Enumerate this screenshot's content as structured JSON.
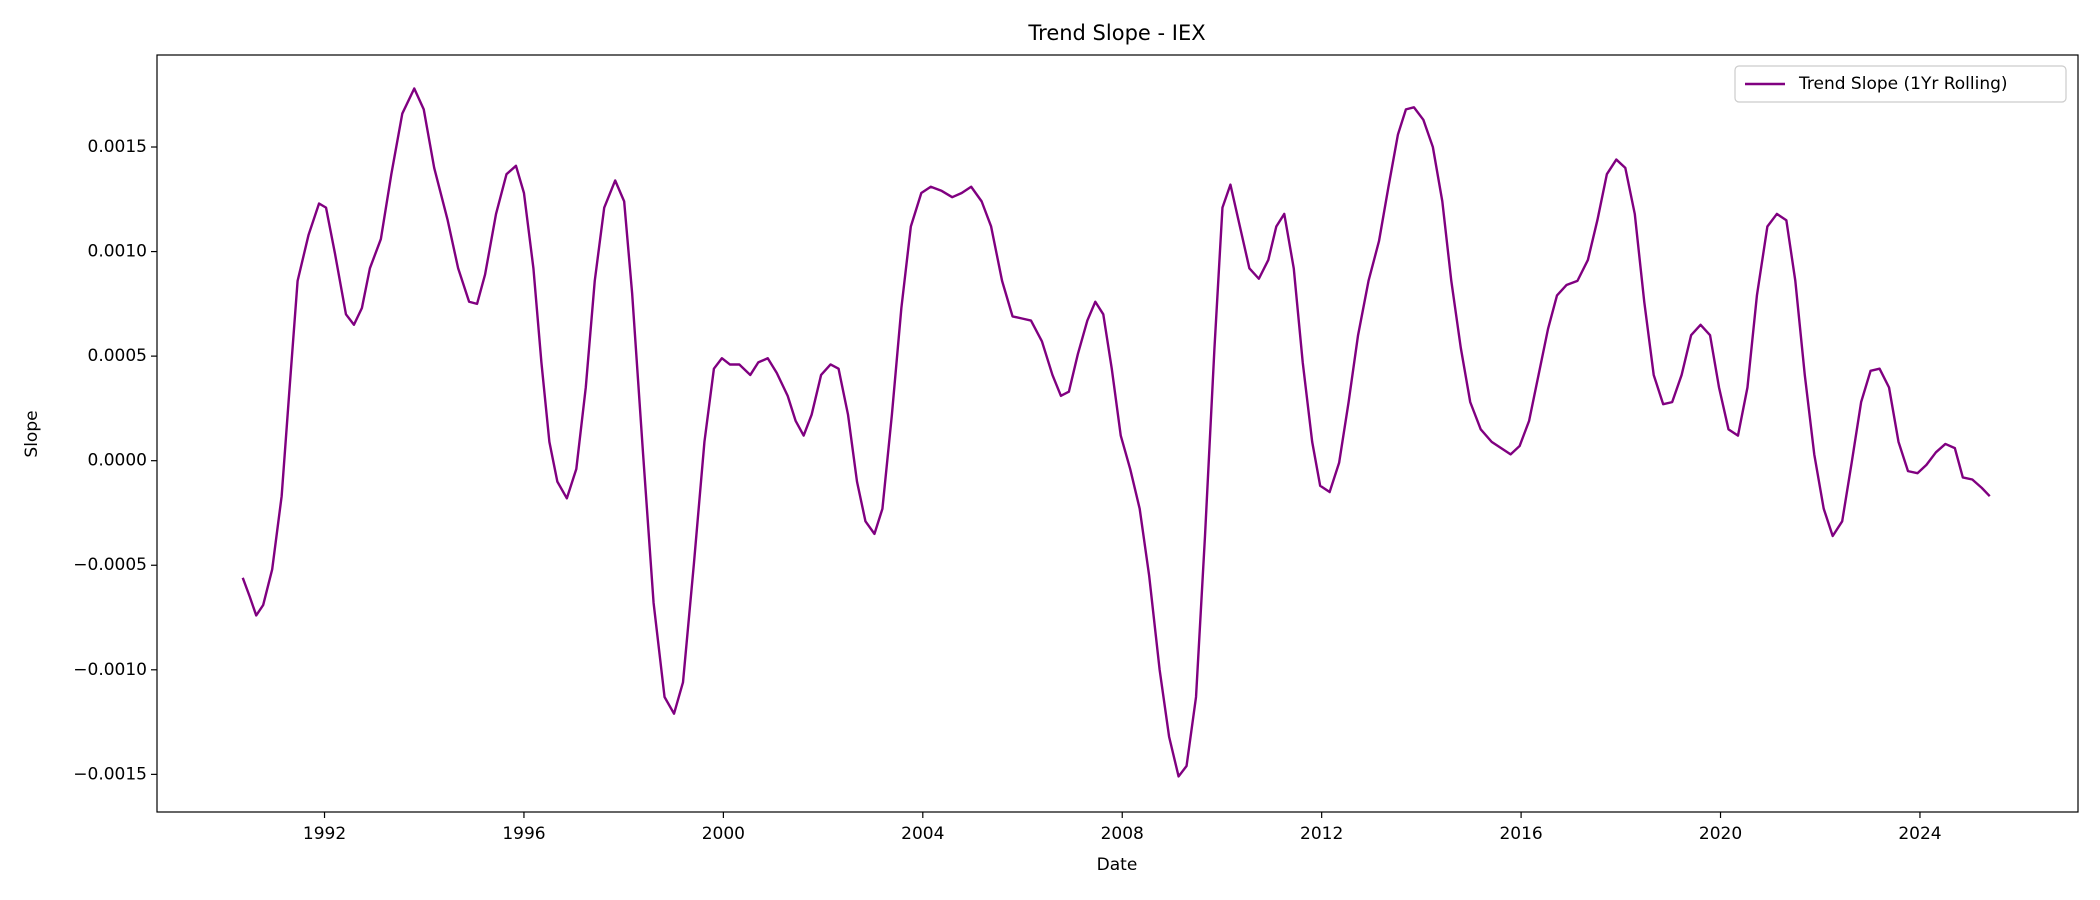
{
  "chart_data": {
    "type": "line",
    "title": "Trend Slope - IEX",
    "xlabel": "Date",
    "ylabel": "Slope",
    "x": [
      1990.36,
      1990.5,
      1990.63,
      1990.77,
      1990.95,
      1991.14,
      1991.3,
      1991.46,
      1991.68,
      1991.89,
      1992.03,
      1992.21,
      1992.43,
      1992.59,
      1992.75,
      1992.91,
      1993.13,
      1993.34,
      1993.56,
      1993.8,
      1993.99,
      1994.2,
      1994.47,
      1994.68,
      1994.9,
      1995.06,
      1995.22,
      1995.44,
      1995.65,
      1995.84,
      1996.0,
      1996.19,
      1996.35,
      1996.51,
      1996.67,
      1996.86,
      1997.05,
      1997.24,
      1997.42,
      1997.61,
      1997.83,
      1998.01,
      1998.17,
      1998.39,
      1998.6,
      1998.82,
      1999.01,
      1999.19,
      1999.41,
      1999.62,
      1999.81,
      1999.97,
      2000.13,
      2000.32,
      2000.54,
      2000.7,
      2000.89,
      2001.07,
      2001.29,
      2001.45,
      2001.61,
      2001.77,
      2001.96,
      2002.15,
      2002.31,
      2002.5,
      2002.68,
      2002.85,
      2003.03,
      2003.19,
      2003.38,
      2003.57,
      2003.76,
      2003.97,
      2004.16,
      2004.38,
      2004.59,
      2004.78,
      2004.97,
      2005.18,
      2005.37,
      2005.59,
      2005.8,
      2005.99,
      2006.17,
      2006.39,
      2006.6,
      2006.77,
      2006.93,
      2007.11,
      2007.3,
      2007.46,
      2007.62,
      2007.79,
      2007.97,
      2008.16,
      2008.35,
      2008.54,
      2008.75,
      2008.94,
      2009.13,
      2009.29,
      2009.48,
      2009.66,
      2009.85,
      2010.01,
      2010.17,
      2010.36,
      2010.55,
      2010.74,
      2010.93,
      2011.09,
      2011.25,
      2011.44,
      2011.62,
      2011.81,
      2011.97,
      2012.16,
      2012.35,
      2012.54,
      2012.73,
      2012.94,
      2013.15,
      2013.34,
      2013.53,
      2013.69,
      2013.85,
      2014.04,
      2014.23,
      2014.42,
      2014.6,
      2014.79,
      2014.98,
      2015.19,
      2015.41,
      2015.6,
      2015.79,
      2015.97,
      2016.16,
      2016.35,
      2016.54,
      2016.72,
      2016.91,
      2017.13,
      2017.34,
      2017.53,
      2017.72,
      2017.91,
      2018.09,
      2018.28,
      2018.47,
      2018.66,
      2018.85,
      2019.03,
      2019.22,
      2019.41,
      2019.6,
      2019.79,
      2019.97,
      2020.16,
      2020.35,
      2020.54,
      2020.73,
      2020.94,
      2021.13,
      2021.32,
      2021.5,
      2021.69,
      2021.88,
      2022.07,
      2022.25,
      2022.44,
      2022.63,
      2022.82,
      2023.01,
      2023.19,
      2023.38,
      2023.57,
      2023.76,
      2023.95,
      2024.13,
      2024.32,
      2024.51,
      2024.7,
      2024.86,
      2025.05,
      2025.24,
      2025.4
    ],
    "series": [
      {
        "name": "Trend Slope (1Yr Rolling)",
        "color": "#800080",
        "values": [
          -0.00056,
          -0.00065,
          -0.00074,
          -0.00069,
          -0.00052,
          -0.00017,
          0.00035,
          0.00086,
          0.00108,
          0.00123,
          0.00121,
          0.00099,
          0.0007,
          0.00065,
          0.00073,
          0.00092,
          0.00106,
          0.00137,
          0.00166,
          0.00178,
          0.00168,
          0.0014,
          0.00115,
          0.00092,
          0.00076,
          0.00075,
          0.00089,
          0.00118,
          0.00137,
          0.00141,
          0.00128,
          0.00092,
          0.00047,
          9e-05,
          -0.0001,
          -0.00018,
          -4e-05,
          0.00035,
          0.00086,
          0.00121,
          0.00134,
          0.00124,
          0.0008,
          3e-05,
          -0.00068,
          -0.00113,
          -0.00121,
          -0.00106,
          -0.00049,
          9e-05,
          0.00044,
          0.00049,
          0.00046,
          0.00046,
          0.00041,
          0.00047,
          0.00049,
          0.00042,
          0.00031,
          0.00019,
          0.00012,
          0.00022,
          0.00041,
          0.00046,
          0.00044,
          0.00022,
          -0.0001,
          -0.00029,
          -0.00035,
          -0.00023,
          0.00022,
          0.00073,
          0.00112,
          0.00128,
          0.00131,
          0.00129,
          0.00126,
          0.00128,
          0.00131,
          0.00124,
          0.00112,
          0.00086,
          0.00069,
          0.00068,
          0.00067,
          0.00057,
          0.00041,
          0.00031,
          0.00033,
          0.00051,
          0.00067,
          0.00076,
          0.0007,
          0.00044,
          0.00012,
          -4e-05,
          -0.00023,
          -0.00055,
          -0.001,
          -0.00132,
          -0.00151,
          -0.00146,
          -0.00113,
          -0.00036,
          0.00054,
          0.00121,
          0.00132,
          0.00112,
          0.00092,
          0.00087,
          0.00096,
          0.00112,
          0.00118,
          0.00092,
          0.00047,
          9e-05,
          -0.00012,
          -0.00015,
          -1e-05,
          0.00028,
          0.0006,
          0.00086,
          0.00105,
          0.00131,
          0.00156,
          0.00168,
          0.00169,
          0.00163,
          0.0015,
          0.00124,
          0.00086,
          0.00054,
          0.00028,
          0.00015,
          9e-05,
          6e-05,
          3e-05,
          7e-05,
          0.00019,
          0.00041,
          0.00063,
          0.00079,
          0.00084,
          0.00086,
          0.00096,
          0.00115,
          0.00137,
          0.00144,
          0.0014,
          0.00118,
          0.00076,
          0.00041,
          0.00027,
          0.00028,
          0.00041,
          0.0006,
          0.00065,
          0.0006,
          0.00035,
          0.00015,
          0.00012,
          0.00035,
          0.00079,
          0.00112,
          0.00118,
          0.00115,
          0.00086,
          0.00041,
          3e-05,
          -0.00023,
          -0.00036,
          -0.00029,
          -1e-05,
          0.00028,
          0.00043,
          0.00044,
          0.00035,
          9e-05,
          -5e-05,
          -6e-05,
          -2e-05,
          4e-05,
          8e-05,
          6e-05,
          -8e-05,
          -9e-05,
          -0.00013,
          -0.00017
        ]
      }
    ],
    "xlim": [
      1988.64,
      2027.17
    ],
    "ylim": [
      -0.00168,
      0.00194
    ],
    "xticks": [
      1992,
      1996,
      2000,
      2004,
      2008,
      2012,
      2016,
      2020,
      2024
    ],
    "yticks": [
      {
        "value": -0.0015,
        "label": "−0.0015"
      },
      {
        "value": -0.001,
        "label": "−0.0010"
      },
      {
        "value": -0.0005,
        "label": "−0.0005"
      },
      {
        "value": 0,
        "label": "0.0000"
      },
      {
        "value": 0.0005,
        "label": "0.0005"
      },
      {
        "value": 0.001,
        "label": "0.0010"
      },
      {
        "value": 0.0015,
        "label": "0.0015"
      }
    ],
    "grid": false,
    "legend": "upper right"
  }
}
